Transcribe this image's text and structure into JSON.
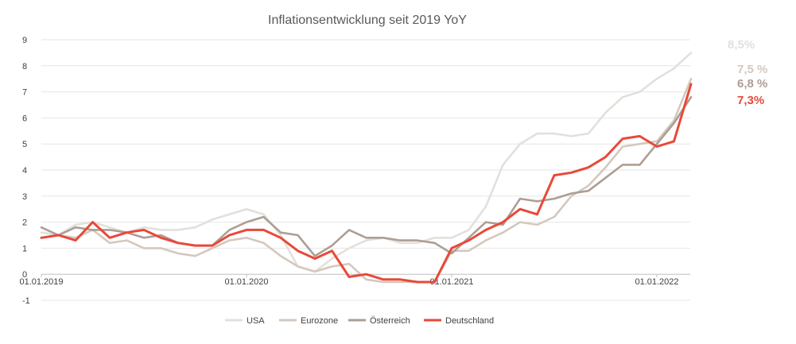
{
  "chart_data": {
    "type": "line",
    "title": "Inflationsentwicklung seit 2019 YoY",
    "xlabel": "",
    "ylabel": "",
    "ylim": [
      -1,
      9
    ],
    "yticks": [
      "9",
      "8",
      "7",
      "6",
      "5",
      "4",
      "3",
      "2",
      "1",
      "0",
      "-1"
    ],
    "x_tick_labels": [
      "01.01.2019",
      "01.01.2020",
      "01.01.2021",
      "01.01.2022"
    ],
    "x_tick_months": [
      0,
      12,
      24,
      36
    ],
    "x_months_count": 40,
    "grid": true,
    "legend": "bottom",
    "series": [
      {
        "name": "USA",
        "color": "#e3e0dc",
        "end_label": "8,5%",
        "values": [
          1.6,
          1.5,
          1.9,
          2.0,
          1.8,
          1.6,
          1.8,
          1.7,
          1.7,
          1.8,
          2.1,
          2.3,
          2.5,
          2.3,
          1.5,
          0.3,
          0.1,
          0.6,
          1.0,
          1.3,
          1.4,
          1.2,
          1.2,
          1.4,
          1.4,
          1.7,
          2.6,
          4.2,
          5.0,
          5.4,
          5.4,
          5.3,
          5.4,
          6.2,
          6.8,
          7.0,
          7.5,
          7.9,
          8.5
        ]
      },
      {
        "name": "Eurozone",
        "color": "#d4c8be",
        "end_label": "7,5 %",
        "values": [
          1.4,
          1.5,
          1.4,
          1.7,
          1.2,
          1.3,
          1.0,
          1.0,
          0.8,
          0.7,
          1.0,
          1.3,
          1.4,
          1.2,
          0.7,
          0.3,
          0.1,
          0.3,
          0.4,
          -0.2,
          -0.3,
          -0.3,
          -0.3,
          -0.3,
          0.9,
          0.9,
          1.3,
          1.6,
          2.0,
          1.9,
          2.2,
          3.0,
          3.4,
          4.1,
          4.9,
          5.0,
          5.1,
          5.9,
          7.5
        ]
      },
      {
        "name": "Österreich",
        "color": "#ad9e94",
        "end_label": "6,8 %",
        "values": [
          1.8,
          1.5,
          1.8,
          1.7,
          1.7,
          1.6,
          1.4,
          1.5,
          1.2,
          1.1,
          1.1,
          1.7,
          2.0,
          2.2,
          1.6,
          1.5,
          0.7,
          1.1,
          1.7,
          1.4,
          1.4,
          1.3,
          1.3,
          1.2,
          0.8,
          1.4,
          2.0,
          1.9,
          2.9,
          2.8,
          2.9,
          3.1,
          3.2,
          3.7,
          4.2,
          4.2,
          5.0,
          5.8,
          6.8
        ]
      },
      {
        "name": "Deutschland",
        "color": "#e8493a",
        "end_label": "7,3%",
        "values": [
          1.4,
          1.5,
          1.3,
          2.0,
          1.4,
          1.6,
          1.7,
          1.4,
          1.2,
          1.1,
          1.1,
          1.5,
          1.7,
          1.7,
          1.4,
          0.9,
          0.6,
          0.9,
          -0.1,
          0.0,
          -0.2,
          -0.2,
          -0.3,
          -0.3,
          1.0,
          1.3,
          1.7,
          2.0,
          2.5,
          2.3,
          3.8,
          3.9,
          4.1,
          4.5,
          5.2,
          5.3,
          4.9,
          5.1,
          7.3
        ]
      }
    ]
  }
}
